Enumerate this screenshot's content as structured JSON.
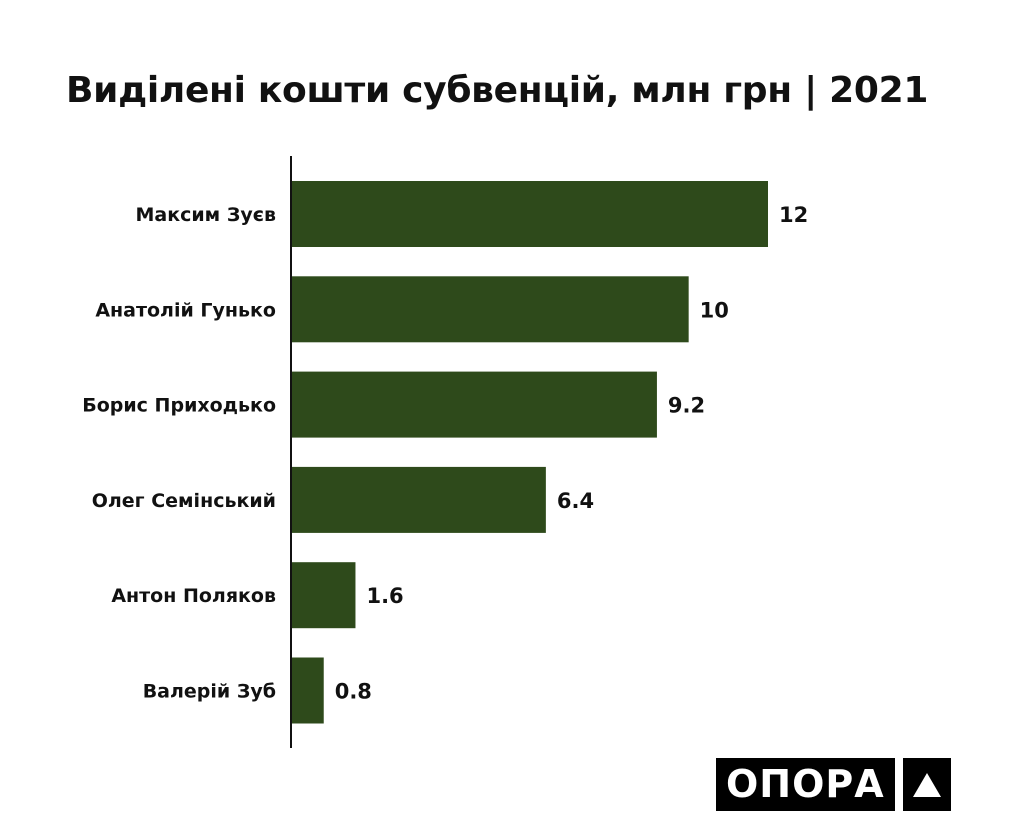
{
  "chart_data": {
    "type": "bar",
    "orientation": "horizontal",
    "title": "Виділені кошти субвенцій, млн грн | 2021",
    "categories": [
      "Максим Зуєв",
      "Анатолій Гунько",
      "Борис Приходько",
      "Олег Семінський",
      "Антон Поляков",
      "Валерій Зуб"
    ],
    "values": [
      12,
      10,
      9.2,
      6.4,
      1.6,
      0.8
    ],
    "value_labels": [
      "12",
      "10",
      "9.2",
      "6.4",
      "1.6",
      "0.8"
    ],
    "xlim": [
      0,
      12
    ],
    "grid": false,
    "bar_color": "#2e4a1b"
  },
  "brand": {
    "logo_text": "ОПОРА",
    "logo_mark_icon": "triangle-icon"
  }
}
